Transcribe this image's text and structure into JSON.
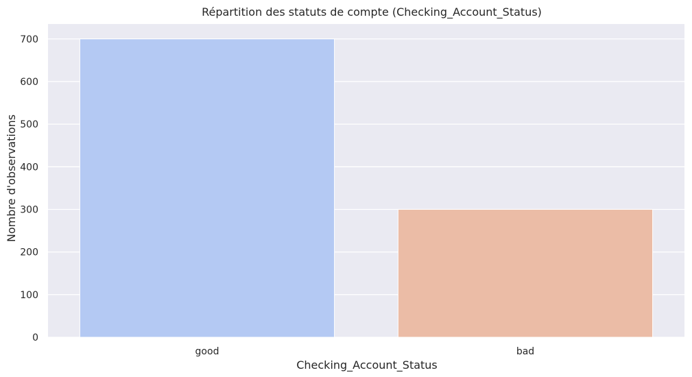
{
  "chart_data": {
    "type": "bar",
    "title": "Répartition des statuts de compte (Checking_Account_Status)",
    "xlabel": "Checking_Account_Status",
    "ylabel": "Nombre d'observations",
    "categories": [
      "good",
      "bad"
    ],
    "values": [
      700,
      300
    ],
    "ylim": [
      0,
      735
    ],
    "yticks": [
      0,
      100,
      200,
      300,
      400,
      500,
      600,
      700
    ],
    "ytick_labels": [
      "0",
      "100",
      "200",
      "300",
      "400",
      "500",
      "600",
      "700"
    ],
    "grid": true,
    "colors": [
      "#b4c9f3",
      "#ebbca6"
    ],
    "background_color": "#eaeaf2",
    "grid_color": "#ffffff"
  }
}
